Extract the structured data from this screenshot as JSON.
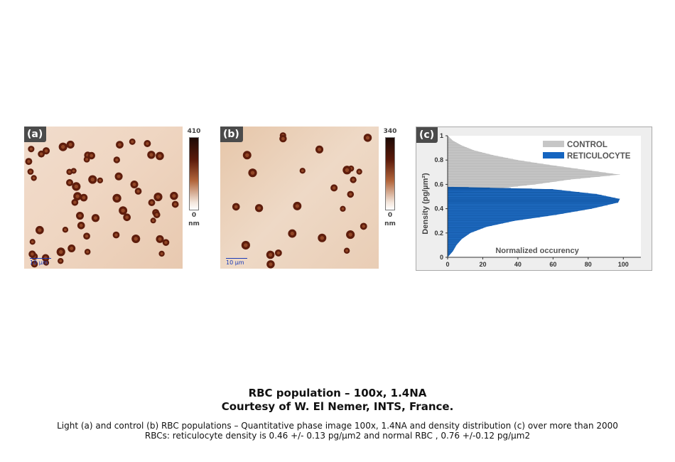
{
  "panel_a": {
    "label": "(a)",
    "scale_label": "10 µm",
    "colorbar": {
      "max": "410",
      "min": "0",
      "unit": "nm"
    }
  },
  "panel_b": {
    "label": "(b)",
    "scale_label": "10 µm",
    "colorbar": {
      "max": "340",
      "min": "0",
      "unit": "nm"
    }
  },
  "panel_c": {
    "label": "(c)"
  },
  "colors": {
    "control": "#c6c6c6",
    "reticulocyte": "#1565c0",
    "cell_dark": "#5e1d0c",
    "cell_ring": "#a0522d"
  },
  "chart_data": {
    "type": "area",
    "orientation": "horizontal",
    "xlabel": "Normalized occurency",
    "ylabel": "Density  (pg/µm²)",
    "xlim": [
      0,
      110
    ],
    "ylim": [
      0,
      1.0
    ],
    "xticks": [
      "0",
      "20",
      "40",
      "60",
      "80",
      "100"
    ],
    "yticks": [
      "0",
      "0.2",
      "0.4",
      "0.6",
      "0.8",
      "1"
    ],
    "legend_position": "top-right",
    "series": [
      {
        "name": "CONTROL",
        "y": [
          0.52,
          0.56,
          0.6,
          0.64,
          0.68,
          0.72,
          0.76,
          0.8,
          0.84,
          0.88,
          0.92,
          0.96,
          1.0
        ],
        "x": [
          0,
          25,
          50,
          70,
          98,
          78,
          58,
          40,
          26,
          15,
          8,
          3,
          0
        ]
      },
      {
        "name": "RETICULOCYTE",
        "y": [
          0.0,
          0.05,
          0.1,
          0.15,
          0.2,
          0.25,
          0.3,
          0.35,
          0.4,
          0.45,
          0.48,
          0.52,
          0.56,
          0.58
        ],
        "x": [
          0,
          3,
          5,
          8,
          13,
          22,
          38,
          62,
          82,
          97,
          98,
          85,
          60,
          0
        ]
      }
    ]
  },
  "caption": {
    "title_line1": "RBC population – 100x, 1.4NA",
    "title_line2": "Courtesy of W. El Nemer, INTS, France.",
    "desc_line1": "Light (a) and control (b) RBC populations – Quantitative phase image 100x, 1.4NA and density distribution (c) over more than 2000",
    "desc_line2": "RBCs: reticulocyte density is 0.46 +/- 0.13 pg/µm2 and normal RBC , 0.76 +/-0.12 pg/µm2"
  }
}
